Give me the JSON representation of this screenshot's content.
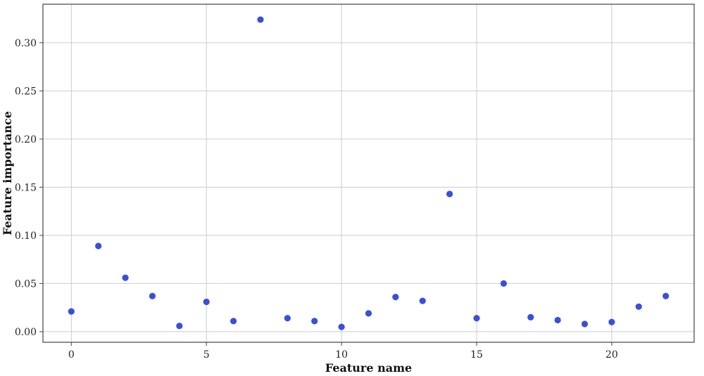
{
  "chart_data": {
    "type": "scatter",
    "title": "",
    "xlabel": "Feature name",
    "ylabel": "Feature importance",
    "x": [
      0,
      1,
      2,
      3,
      4,
      5,
      6,
      7,
      8,
      9,
      10,
      11,
      12,
      13,
      14,
      15,
      16,
      17,
      18,
      19,
      20,
      21,
      22
    ],
    "y": [
      0.021,
      0.089,
      0.056,
      0.037,
      0.006,
      0.031,
      0.011,
      0.324,
      0.014,
      0.011,
      0.005,
      0.019,
      0.036,
      0.032,
      0.143,
      0.014,
      0.05,
      0.015,
      0.012,
      0.008,
      0.01,
      0.026,
      0.037
    ],
    "xlim": [
      -1.05,
      23.05
    ],
    "ylim": [
      -0.011,
      0.34
    ],
    "xticks": [
      0,
      5,
      10,
      15,
      20
    ],
    "xtick_labels": [
      "0",
      "5",
      "10",
      "15",
      "20"
    ],
    "yticks": [
      0.0,
      0.05,
      0.1,
      0.15,
      0.2,
      0.25,
      0.3
    ],
    "ytick_labels": [
      "0.00",
      "0.05",
      "0.10",
      "0.15",
      "0.20",
      "0.25",
      "0.30"
    ],
    "grid": true,
    "legend": "none",
    "point_color": "#3a4fd8"
  }
}
